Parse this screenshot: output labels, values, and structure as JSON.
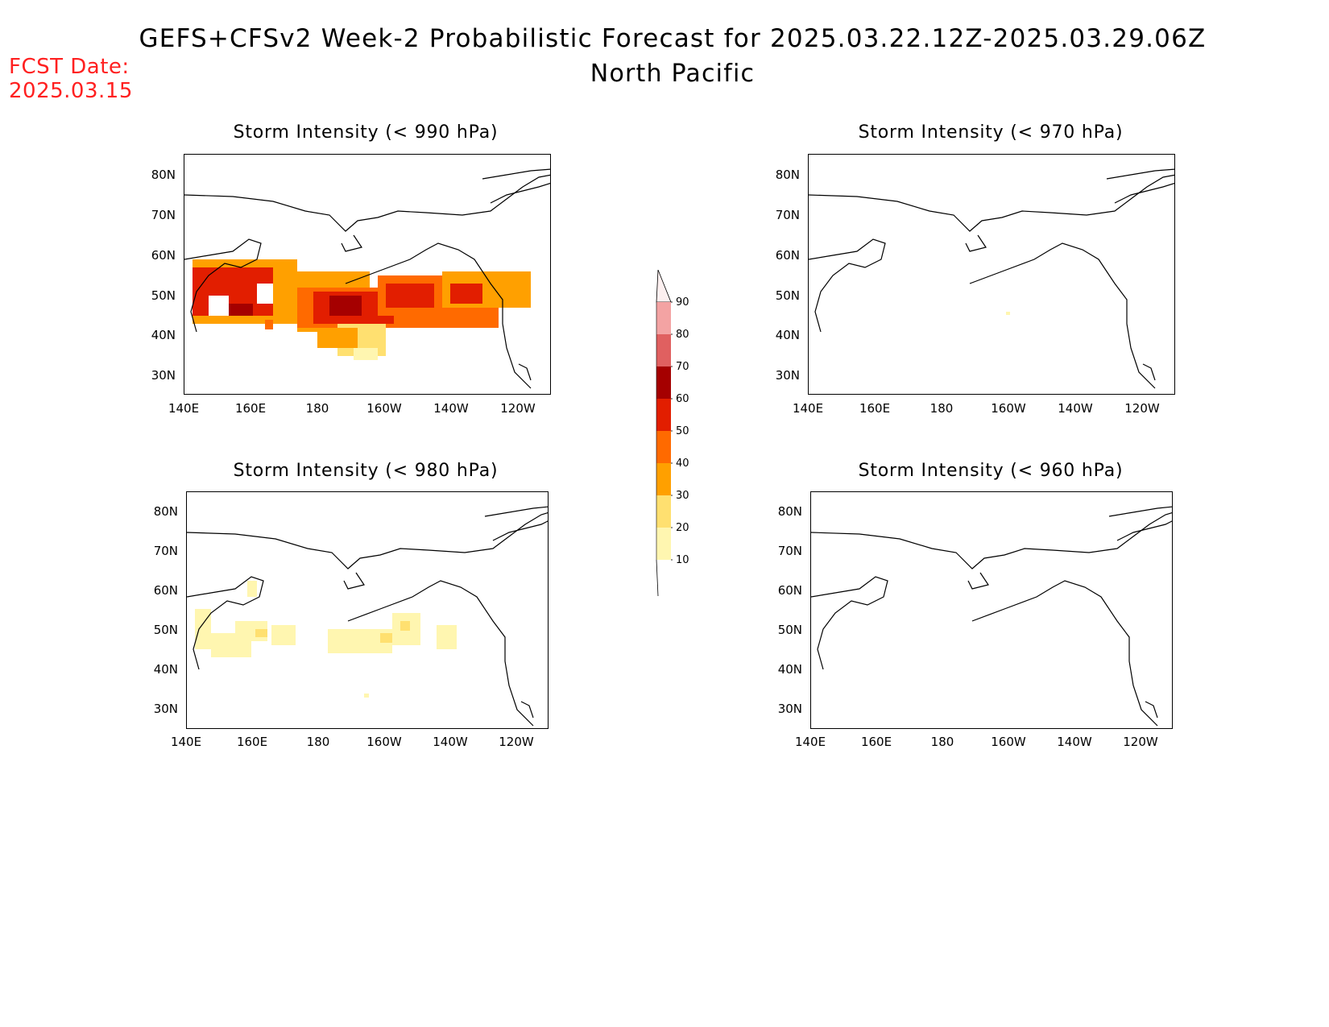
{
  "header": {
    "title": "GEFS+CFSv2 Week-2 Probabilistic Forecast for 2025.03.22.12Z-2025.03.29.06Z",
    "region": "North Pacific",
    "fcst_label": "FCST Date:",
    "fcst_date": "2025.03.15"
  },
  "panels": [
    {
      "id": "p990",
      "title": "Storm Intensity (< 990 hPa)"
    },
    {
      "id": "p970",
      "title": "Storm Intensity (< 970 hPa)"
    },
    {
      "id": "p980",
      "title": "Storm Intensity (< 980 hPa)"
    },
    {
      "id": "p960",
      "title": "Storm Intensity (< 960 hPa)"
    }
  ],
  "axes": {
    "lat_labels": [
      "80N",
      "70N",
      "60N",
      "50N",
      "40N",
      "30N"
    ],
    "lon_labels": [
      "140E",
      "160E",
      "180",
      "160W",
      "140W",
      "120W"
    ]
  },
  "colorbar": {
    "levels": [
      "90",
      "80",
      "70",
      "60",
      "50",
      "40",
      "30",
      "20",
      "10"
    ],
    "colors": [
      "#fdf0f0",
      "#f3a3a3",
      "#e06060",
      "#a50000",
      "#e21e00",
      "#ff6a00",
      "#ffa000",
      "#ffe070",
      "#fff6b0"
    ]
  }
}
